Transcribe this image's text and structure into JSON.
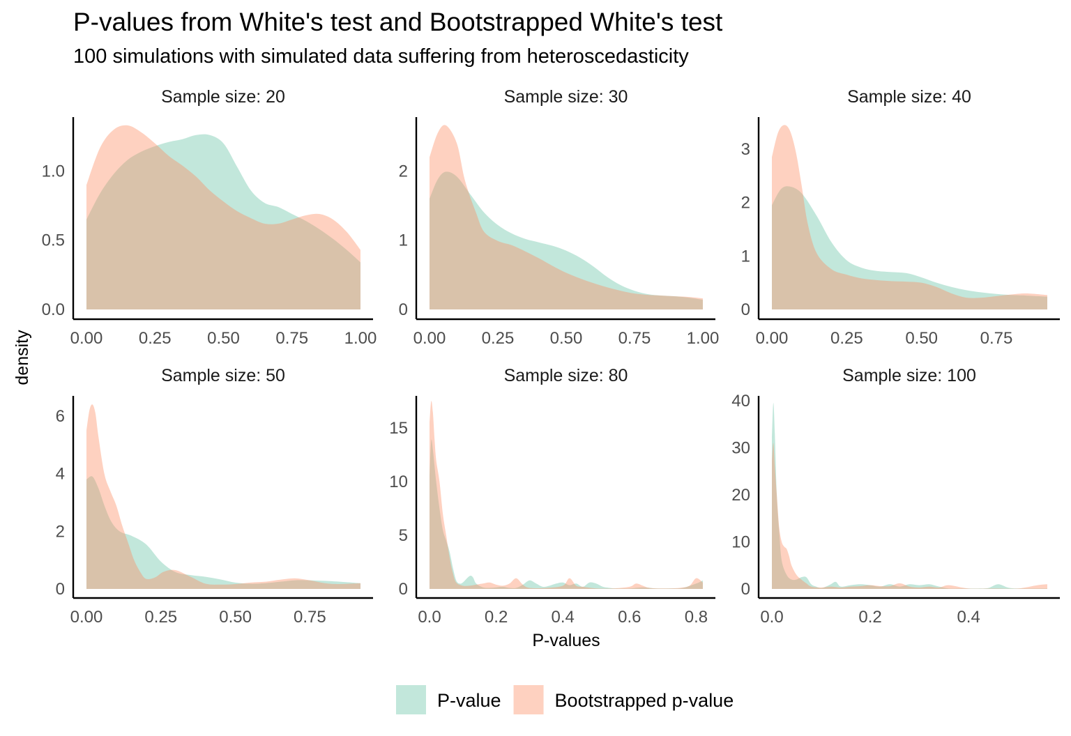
{
  "title": "P-values from White's test and Bootstrapped White's test",
  "subtitle": "100 simulations with simulated data suffering from heteroscedasticity",
  "xlabel": "P-values",
  "ylabel": "density",
  "colors": {
    "p_value": "#66C2A5",
    "bootstrapped": "#FC8D62"
  },
  "legend": {
    "placement": "bottom",
    "items": [
      {
        "key": "p_value",
        "label": "P-value"
      },
      {
        "key": "bootstrapped",
        "label": "Bootstrapped p-value"
      }
    ]
  },
  "chart_data": [
    {
      "type": "area",
      "strip": "Sample size: 20",
      "xlim": [
        0,
        1
      ],
      "ylim": [
        0,
        1.39
      ],
      "xticks": [
        0,
        0.25,
        0.5,
        0.75,
        1
      ],
      "xtick_labels": [
        "0.00",
        "0.25",
        "0.50",
        "0.75",
        "1.00"
      ],
      "yticks": [
        0,
        0.5,
        1.0
      ],
      "ytick_labels": [
        "0.0",
        "0.5",
        "1.0"
      ],
      "series": [
        {
          "name": "P-value",
          "key": "p_value",
          "x": [
            0,
            0.05,
            0.1,
            0.15,
            0.2,
            0.25,
            0.3,
            0.35,
            0.4,
            0.45,
            0.5,
            0.55,
            0.6,
            0.65,
            0.7,
            0.75,
            0.8,
            0.85,
            0.9,
            0.95,
            1
          ],
          "y": [
            0.65,
            0.84,
            0.98,
            1.08,
            1.14,
            1.18,
            1.21,
            1.23,
            1.26,
            1.26,
            1.2,
            1.03,
            0.86,
            0.77,
            0.74,
            0.69,
            0.64,
            0.58,
            0.51,
            0.43,
            0.34
          ]
        },
        {
          "name": "Bootstrapped p-value",
          "key": "bootstrapped",
          "x": [
            0,
            0.05,
            0.1,
            0.15,
            0.2,
            0.25,
            0.3,
            0.35,
            0.4,
            0.45,
            0.5,
            0.55,
            0.6,
            0.65,
            0.7,
            0.75,
            0.8,
            0.85,
            0.9,
            0.95,
            1
          ],
          "y": [
            0.9,
            1.17,
            1.3,
            1.33,
            1.28,
            1.2,
            1.11,
            1.04,
            0.96,
            0.86,
            0.78,
            0.71,
            0.66,
            0.62,
            0.62,
            0.65,
            0.68,
            0.69,
            0.65,
            0.56,
            0.43
          ]
        }
      ]
    },
    {
      "type": "area",
      "strip": "Sample size: 30",
      "xlim": [
        0,
        1
      ],
      "ylim": [
        0,
        2.78
      ],
      "xticks": [
        0,
        0.25,
        0.5,
        0.75,
        1
      ],
      "xtick_labels": [
        "0.00",
        "0.25",
        "0.50",
        "0.75",
        "1.00"
      ],
      "yticks": [
        0,
        1,
        2
      ],
      "ytick_labels": [
        "0",
        "1",
        "2"
      ],
      "series": [
        {
          "name": "P-value",
          "key": "p_value",
          "x": [
            0,
            0.03,
            0.06,
            0.1,
            0.15,
            0.2,
            0.25,
            0.3,
            0.35,
            0.4,
            0.45,
            0.5,
            0.55,
            0.6,
            0.65,
            0.7,
            0.75,
            0.8,
            0.85,
            0.9,
            0.95,
            1
          ],
          "y": [
            1.6,
            1.88,
            1.99,
            1.92,
            1.66,
            1.4,
            1.22,
            1.1,
            1.02,
            0.97,
            0.92,
            0.85,
            0.75,
            0.62,
            0.47,
            0.35,
            0.27,
            0.22,
            0.2,
            0.19,
            0.17,
            0.14
          ]
        },
        {
          "name": "Bootstrapped p-value",
          "key": "bootstrapped",
          "x": [
            0,
            0.03,
            0.06,
            0.1,
            0.13,
            0.17,
            0.2,
            0.25,
            0.3,
            0.35,
            0.4,
            0.45,
            0.5,
            0.55,
            0.6,
            0.65,
            0.7,
            0.75,
            0.8,
            0.85,
            0.9,
            0.95,
            1
          ],
          "y": [
            2.2,
            2.55,
            2.66,
            2.4,
            1.86,
            1.4,
            1.12,
            0.99,
            0.93,
            0.84,
            0.74,
            0.63,
            0.53,
            0.45,
            0.38,
            0.32,
            0.27,
            0.23,
            0.21,
            0.2,
            0.19,
            0.18,
            0.16
          ]
        }
      ]
    },
    {
      "type": "area",
      "strip": "Sample size: 40",
      "xlim": [
        0,
        0.92
      ],
      "ylim": [
        0,
        3.6
      ],
      "xticks": [
        0,
        0.25,
        0.5,
        0.75
      ],
      "xtick_labels": [
        "0.00",
        "0.25",
        "0.50",
        "0.75"
      ],
      "yticks": [
        0,
        1,
        2,
        3
      ],
      "ytick_labels": [
        "0",
        "1",
        "2",
        "3"
      ],
      "series": [
        {
          "name": "P-value",
          "key": "p_value",
          "x": [
            0,
            0.03,
            0.06,
            0.1,
            0.15,
            0.2,
            0.25,
            0.3,
            0.35,
            0.4,
            0.45,
            0.5,
            0.55,
            0.6,
            0.65,
            0.7,
            0.75,
            0.8,
            0.85,
            0.92
          ],
          "y": [
            1.95,
            2.25,
            2.3,
            2.17,
            1.75,
            1.25,
            0.92,
            0.78,
            0.72,
            0.7,
            0.68,
            0.6,
            0.5,
            0.42,
            0.36,
            0.32,
            0.29,
            0.27,
            0.26,
            0.24
          ]
        },
        {
          "name": "Bootstrapped p-value",
          "key": "bootstrapped",
          "x": [
            0,
            0.02,
            0.04,
            0.06,
            0.08,
            0.1,
            0.12,
            0.15,
            0.2,
            0.25,
            0.3,
            0.35,
            0.4,
            0.45,
            0.5,
            0.55,
            0.6,
            0.65,
            0.7,
            0.75,
            0.8,
            0.85,
            0.92
          ],
          "y": [
            2.85,
            3.3,
            3.45,
            3.35,
            2.95,
            2.3,
            1.6,
            1.05,
            0.75,
            0.65,
            0.58,
            0.55,
            0.53,
            0.52,
            0.5,
            0.42,
            0.3,
            0.22,
            0.22,
            0.25,
            0.28,
            0.3,
            0.27
          ]
        }
      ]
    },
    {
      "type": "area",
      "strip": "Sample size: 50",
      "xlim": [
        0,
        0.92
      ],
      "ylim": [
        0,
        6.7
      ],
      "xticks": [
        0,
        0.25,
        0.5,
        0.75
      ],
      "xtick_labels": [
        "0.00",
        "0.25",
        "0.50",
        "0.75"
      ],
      "yticks": [
        0,
        2,
        4,
        6
      ],
      "ytick_labels": [
        "0",
        "2",
        "4",
        "6"
      ],
      "series": [
        {
          "name": "P-value",
          "key": "p_value",
          "x": [
            0,
            0.02,
            0.04,
            0.06,
            0.08,
            0.1,
            0.12,
            0.15,
            0.2,
            0.25,
            0.3,
            0.35,
            0.4,
            0.45,
            0.5,
            0.55,
            0.6,
            0.65,
            0.7,
            0.75,
            0.8,
            0.85,
            0.92
          ],
          "y": [
            3.8,
            3.9,
            3.5,
            2.9,
            2.4,
            2.1,
            1.95,
            1.85,
            1.55,
            0.95,
            0.58,
            0.48,
            0.42,
            0.33,
            0.22,
            0.18,
            0.2,
            0.25,
            0.3,
            0.3,
            0.28,
            0.25,
            0.2
          ]
        },
        {
          "name": "Bootstrapped p-value",
          "key": "bootstrapped",
          "x": [
            0,
            0.01,
            0.02,
            0.03,
            0.04,
            0.06,
            0.08,
            0.1,
            0.12,
            0.14,
            0.16,
            0.18,
            0.2,
            0.23,
            0.26,
            0.3,
            0.35,
            0.4,
            0.45,
            0.5,
            0.55,
            0.6,
            0.65,
            0.7,
            0.75,
            0.8,
            0.85,
            0.92
          ],
          "y": [
            5.5,
            6.2,
            6.4,
            6.1,
            5.3,
            4.0,
            3.4,
            2.9,
            2.2,
            1.6,
            1.0,
            0.6,
            0.35,
            0.4,
            0.6,
            0.65,
            0.42,
            0.18,
            0.15,
            0.17,
            0.22,
            0.25,
            0.32,
            0.37,
            0.3,
            0.2,
            0.17,
            0.2
          ]
        }
      ]
    },
    {
      "type": "area",
      "strip": "Sample size: 80",
      "xlim": [
        0,
        0.82
      ],
      "ylim": [
        0,
        18
      ],
      "xticks": [
        0,
        0.2,
        0.4,
        0.6,
        0.8
      ],
      "xtick_labels": [
        "0.0",
        "0.2",
        "0.4",
        "0.6",
        "0.8"
      ],
      "yticks": [
        0,
        5,
        10,
        15
      ],
      "ytick_labels": [
        "0",
        "5",
        "10",
        "15"
      ],
      "series": [
        {
          "name": "P-value",
          "key": "p_value",
          "x": [
            0,
            0.005,
            0.01,
            0.02,
            0.03,
            0.04,
            0.05,
            0.06,
            0.07,
            0.08,
            0.09,
            0.1,
            0.12,
            0.13,
            0.14,
            0.16,
            0.18,
            0.2,
            0.22,
            0.24,
            0.26,
            0.28,
            0.3,
            0.32,
            0.34,
            0.36,
            0.38,
            0.4,
            0.42,
            0.44,
            0.46,
            0.48,
            0.5,
            0.52,
            0.54,
            0.56,
            0.6,
            0.64,
            0.68,
            0.72,
            0.76,
            0.8,
            0.82
          ],
          "y": [
            10.5,
            13.8,
            13.0,
            10.0,
            7.5,
            5.5,
            4.5,
            3.5,
            2.0,
            0.8,
            0.5,
            0.6,
            1.2,
            1.1,
            0.5,
            0.15,
            0.1,
            0.15,
            0.2,
            0.1,
            0.1,
            0.4,
            0.8,
            0.5,
            0.2,
            0.3,
            0.5,
            0.6,
            0.35,
            0.5,
            0.2,
            0.6,
            0.5,
            0.2,
            0.1,
            0.05,
            0.05,
            0.15,
            0.05,
            0.05,
            0.1,
            0.5,
            0.8
          ]
        },
        {
          "name": "Bootstrapped p-value",
          "key": "bootstrapped",
          "x": [
            0,
            0.005,
            0.01,
            0.015,
            0.02,
            0.03,
            0.04,
            0.05,
            0.06,
            0.07,
            0.08,
            0.1,
            0.12,
            0.14,
            0.16,
            0.18,
            0.2,
            0.22,
            0.24,
            0.26,
            0.28,
            0.3,
            0.35,
            0.4,
            0.42,
            0.44,
            0.46,
            0.5,
            0.55,
            0.6,
            0.62,
            0.64,
            0.66,
            0.7,
            0.75,
            0.78,
            0.8,
            0.82
          ],
          "y": [
            15.5,
            17.5,
            16.5,
            14.0,
            12.0,
            10.0,
            7.0,
            5.0,
            3.0,
            1.5,
            0.6,
            0.3,
            0.3,
            0.4,
            0.5,
            0.6,
            0.4,
            0.3,
            0.5,
            1.0,
            0.4,
            0.1,
            0.1,
            0.3,
            1.0,
            0.3,
            0.2,
            0.05,
            0.05,
            0.2,
            0.5,
            0.3,
            0.1,
            0.05,
            0.1,
            0.3,
            1.0,
            0.6
          ]
        }
      ]
    },
    {
      "type": "area",
      "strip": "Sample size: 100",
      "xlim": [
        0,
        0.56
      ],
      "ylim": [
        0,
        41
      ],
      "xticks": [
        0,
        0.2,
        0.4
      ],
      "xtick_labels": [
        "0.0",
        "0.2",
        "0.4"
      ],
      "yticks": [
        0,
        10,
        20,
        30,
        40
      ],
      "ytick_labels": [
        "0",
        "10",
        "20",
        "30",
        "40"
      ],
      "series": [
        {
          "name": "P-value",
          "key": "p_value",
          "x": [
            0,
            0.003,
            0.006,
            0.01,
            0.015,
            0.02,
            0.03,
            0.04,
            0.05,
            0.06,
            0.07,
            0.08,
            0.09,
            0.1,
            0.11,
            0.12,
            0.13,
            0.14,
            0.16,
            0.18,
            0.2,
            0.22,
            0.24,
            0.26,
            0.28,
            0.3,
            0.32,
            0.34,
            0.36,
            0.38,
            0.4,
            0.42,
            0.44,
            0.46,
            0.48,
            0.5,
            0.54,
            0.56
          ],
          "y": [
            32,
            39.5,
            33,
            20,
            12,
            6,
            3,
            2,
            2,
            2.5,
            2.5,
            1,
            0.5,
            0.2,
            0.5,
            1.0,
            1.5,
            0.5,
            0.8,
            1.0,
            0.8,
            0.5,
            1.0,
            0.5,
            1.0,
            0.8,
            1.0,
            0.5,
            0.1,
            0.1,
            0.1,
            0.1,
            0.2,
            1.0,
            0.3,
            0.1,
            0.1,
            0.1
          ]
        },
        {
          "name": "Bootstrapped p-value",
          "key": "bootstrapped",
          "x": [
            0,
            0.003,
            0.006,
            0.01,
            0.015,
            0.02,
            0.025,
            0.03,
            0.035,
            0.04,
            0.05,
            0.06,
            0.07,
            0.08,
            0.1,
            0.12,
            0.14,
            0.16,
            0.18,
            0.2,
            0.22,
            0.24,
            0.26,
            0.28,
            0.3,
            0.32,
            0.34,
            0.36,
            0.4,
            0.45,
            0.5,
            0.54,
            0.56
          ],
          "y": [
            27,
            31,
            26,
            20,
            13,
            10,
            9,
            8.5,
            7,
            5,
            3,
            2,
            1.2,
            0.5,
            0.3,
            0.5,
            0.3,
            0.5,
            0.6,
            0.8,
            0.6,
            0.6,
            1.2,
            0.5,
            0.3,
            0.5,
            0.3,
            0.8,
            0.1,
            0.1,
            0.1,
            0.8,
            1.0
          ]
        }
      ]
    }
  ]
}
